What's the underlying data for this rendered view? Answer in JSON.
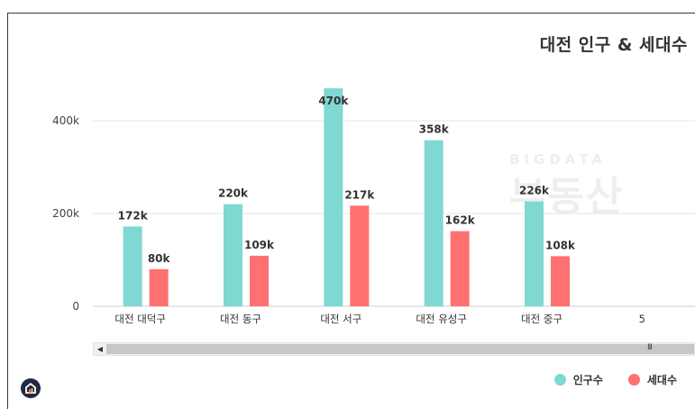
{
  "title": "대전 인구 & 세대수",
  "chart_data": {
    "type": "bar",
    "categories": [
      "대전 대덕구",
      "대전 동구",
      "대전 서구",
      "대전 유성구",
      "대전 중구",
      "5"
    ],
    "series": [
      {
        "name": "인구수",
        "color": "#7fd8d2",
        "values": [
          172000,
          220000,
          470000,
          358000,
          226000,
          null
        ],
        "labels": [
          "172k",
          "220k",
          "470k",
          "358k",
          "226k",
          ""
        ]
      },
      {
        "name": "세대수",
        "color": "#ff7070",
        "values": [
          80000,
          109000,
          217000,
          162000,
          108000,
          null
        ],
        "labels": [
          "80k",
          "109k",
          "217k",
          "162k",
          "108k",
          ""
        ]
      }
    ],
    "yticks": [
      "0",
      "200k",
      "400k"
    ],
    "ytick_values": [
      0,
      200000,
      400000
    ],
    "ylim": [
      0,
      470000
    ],
    "grid": true,
    "legend_position": "bottom-right"
  },
  "watermark": {
    "top": "BIGDATA",
    "main": "부동산"
  },
  "scrollbar": {
    "grip": "III",
    "left_arrow": "◀"
  },
  "logo": {
    "icon": "home-icon"
  }
}
